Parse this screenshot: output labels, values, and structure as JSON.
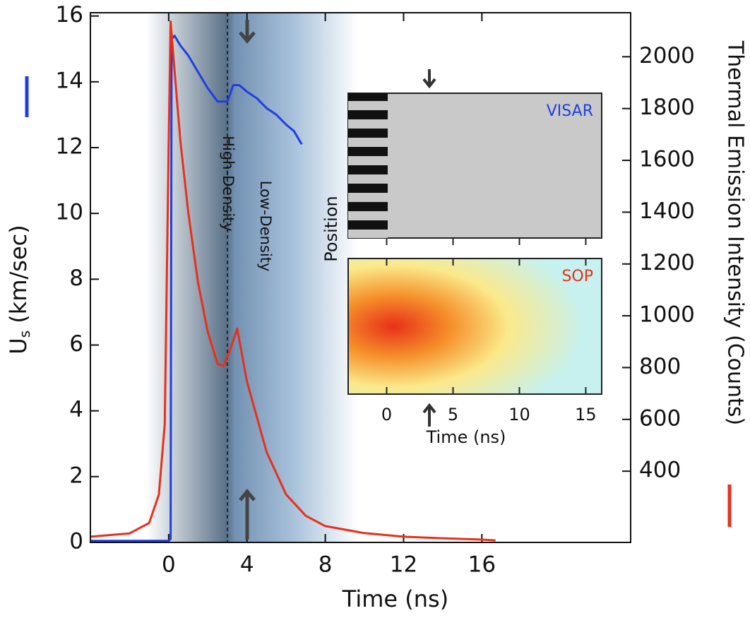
{
  "chart_data": {
    "type": "line",
    "xlabel": "Time (ns)",
    "ylabel_parts": [
      "U",
      "s",
      " (km/sec)"
    ],
    "y2label": "Thermal Emission Intensity (Counts)",
    "xlim": [
      -4,
      23.6
    ],
    "ylim": [
      0,
      16.1
    ],
    "y2lim": [
      125,
      2170
    ],
    "xticks": [
      0,
      4,
      8,
      12,
      16
    ],
    "yticks": [
      0,
      2,
      4,
      6,
      8,
      10,
      12,
      14,
      16
    ],
    "y2ticks": [
      400,
      600,
      800,
      1000,
      1200,
      1400,
      1600,
      1800,
      2000
    ],
    "marker_x": 3,
    "annotations": [
      "High-Density",
      "Low-Density"
    ],
    "series": [
      {
        "color": "#1f3fe0",
        "axis": "y",
        "x": [
          -4,
          -1,
          0,
          0.1,
          0.15,
          0.3,
          0.6,
          1,
          1.5,
          2,
          2.5,
          3,
          3.3,
          3.6,
          4,
          4.5,
          5,
          5.5,
          6,
          6.4,
          6.8
        ],
        "values": [
          0.05,
          0.05,
          0.05,
          0.1,
          15.3,
          15.4,
          15.1,
          14.8,
          14.3,
          13.8,
          13.4,
          13.4,
          13.9,
          13.9,
          13.7,
          13.5,
          13.2,
          13.0,
          12.7,
          12.5,
          12.1
        ]
      },
      {
        "color": "#e8301a",
        "axis": "y2",
        "x": [
          -4,
          -2,
          -1,
          -0.5,
          -0.2,
          0,
          0.1,
          0.3,
          0.6,
          1,
          1.5,
          2,
          2.5,
          2.8,
          3.2,
          3.5,
          4,
          5,
          6,
          7,
          8,
          10,
          12,
          14,
          16,
          16.7
        ],
        "values": [
          147,
          160,
          200,
          310,
          582,
          1673,
          2136,
          1945,
          1673,
          1400,
          1128,
          937,
          814,
          806,
          882,
          950,
          746,
          474,
          310,
          228,
          188,
          161,
          147,
          141,
          136,
          133
        ]
      }
    ]
  },
  "inset": {
    "xlim": [
      -2.9,
      16.2
    ],
    "xticks": [
      0,
      5,
      10,
      15
    ],
    "xlabel": "Time (ns)",
    "ylabel": "Position",
    "panels": [
      "VISAR",
      "SOP"
    ]
  }
}
